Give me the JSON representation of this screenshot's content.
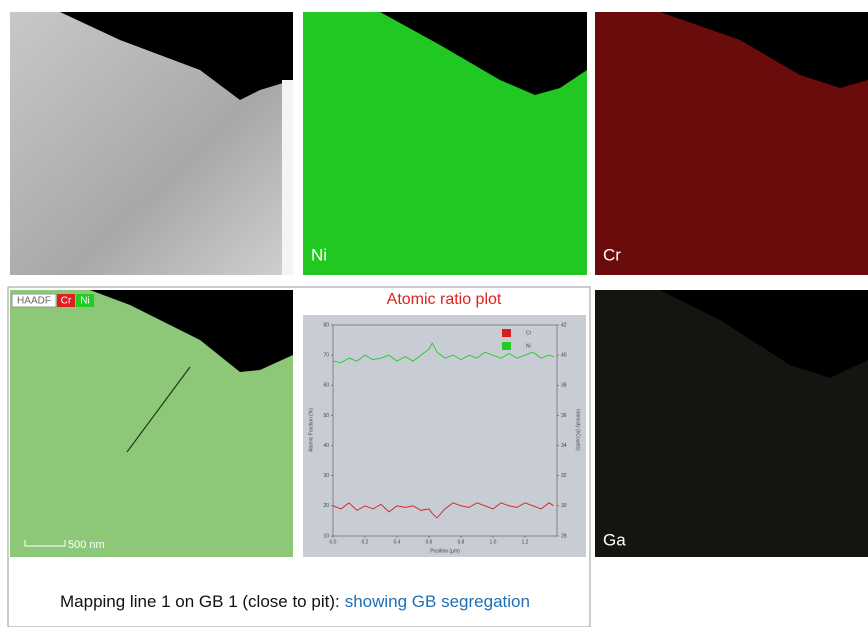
{
  "panels": {
    "ni_label": "Ni",
    "cr_label": "Cr",
    "ga_label": "Ga",
    "overlay_tags": [
      "HAADF",
      "Cr",
      "Ni"
    ],
    "scale_bar": "500 nm"
  },
  "chart_data": {
    "type": "line",
    "title": "Atomic ratio plot",
    "xlabel": "Position (µm)",
    "ylabel": "Atomic Fraction (%)",
    "y2label": "Intensity (kCounts)",
    "x": [
      0,
      0.05,
      0.1,
      0.15,
      0.2,
      0.25,
      0.3,
      0.35,
      0.4,
      0.45,
      0.5,
      0.55,
      0.6,
      0.62,
      0.65,
      0.7,
      0.75,
      0.8,
      0.85,
      0.9,
      0.95,
      1.0,
      1.05,
      1.1,
      1.15,
      1.2,
      1.25,
      1.3,
      1.35,
      1.38
    ],
    "series": [
      {
        "name": "Cr",
        "color": "#d42020",
        "values": [
          20,
          19,
          21,
          18.5,
          20,
          19,
          20.5,
          18,
          20,
          19.5,
          20,
          18.5,
          19,
          17.5,
          16,
          19,
          21,
          20,
          19.5,
          21,
          20,
          19,
          21,
          20,
          19.5,
          21,
          20,
          19,
          21,
          20
        ]
      },
      {
        "name": "Ni",
        "color": "#22cc22",
        "values": [
          68,
          67.5,
          69,
          68,
          70,
          68.5,
          69,
          70,
          68,
          69.5,
          68,
          70,
          72,
          74,
          71,
          69,
          70,
          68.5,
          70,
          69,
          71,
          70,
          69,
          70.5,
          69,
          70,
          71,
          69,
          70,
          69.5
        ]
      }
    ],
    "xlim": [
      0,
      1.4
    ],
    "xticks": [
      {
        "value": 0,
        "label": "0.0"
      },
      0.2,
      0.4,
      0.6,
      0.8,
      {
        "value": 1,
        "label": "1.0"
      },
      1.2
    ],
    "ylim": [
      10,
      80
    ],
    "yticks": [
      10,
      20,
      30,
      40,
      50,
      60,
      70,
      80
    ],
    "y2lim": [
      28,
      42
    ],
    "y2ticks": [
      28,
      30,
      32,
      34,
      36,
      38,
      40,
      42
    ],
    "legend": "upper-right"
  },
  "caption": {
    "main": "Mapping line 1 on GB 1 (close to pit):",
    "highlight": "showing GB segregation"
  }
}
